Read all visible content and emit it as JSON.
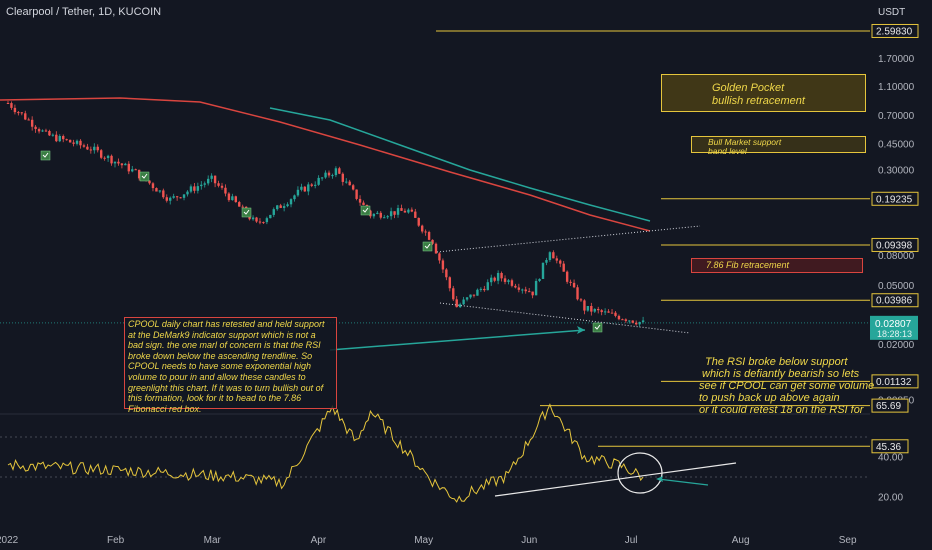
{
  "header": {
    "title": "Clearpool / Tether, 1D, KUCOIN"
  },
  "chart_data": {
    "type": "candlestick",
    "title": "Clearpool / Tether, 1D, KUCOIN",
    "price_scale": "log",
    "currency_label": "USDT",
    "price_ticks": [
      "1.70000",
      "1.10000",
      "0.70000",
      "0.45000",
      "0.30000",
      "0.08000",
      "0.05000",
      "0.02000",
      "0.00850"
    ],
    "level_labels": [
      {
        "name": "level-2.59830",
        "value": "2.59830"
      },
      {
        "name": "level-0.19235",
        "value": "0.19235"
      },
      {
        "name": "level-0.09398",
        "value": "0.09398"
      },
      {
        "name": "level-0.03986",
        "value": "0.03986"
      },
      {
        "name": "level-0.01132",
        "value": "0.01132"
      }
    ],
    "current_price": "0.02807",
    "countdown": "18:28:13",
    "x_ticks": [
      "2022",
      "Feb",
      "Mar",
      "Apr",
      "May",
      "Jun",
      "Jul",
      "Aug",
      "Sep"
    ],
    "rsi": {
      "ticks": [
        "20.00",
        "40.00"
      ],
      "level_labels": [
        "65.69",
        "45.36"
      ]
    },
    "price_path": [
      {
        "date": "2022-01-01",
        "close": 0.85
      },
      {
        "date": "2022-01-12",
        "close": 0.52
      },
      {
        "date": "2022-01-25",
        "close": 0.42
      },
      {
        "date": "2022-02-07",
        "close": 0.29
      },
      {
        "date": "2022-02-17",
        "close": 0.19
      },
      {
        "date": "2022-03-01",
        "close": 0.26
      },
      {
        "date": "2022-03-14",
        "close": 0.13
      },
      {
        "date": "2022-03-27",
        "close": 0.22
      },
      {
        "date": "2022-04-06",
        "close": 0.3
      },
      {
        "date": "2022-04-16",
        "close": 0.15
      },
      {
        "date": "2022-04-27",
        "close": 0.16
      },
      {
        "date": "2022-05-04",
        "close": 0.1
      },
      {
        "date": "2022-05-11",
        "close": 0.036
      },
      {
        "date": "2022-05-23",
        "close": 0.058
      },
      {
        "date": "2022-06-02",
        "close": 0.045
      },
      {
        "date": "2022-06-07",
        "close": 0.088
      },
      {
        "date": "2022-06-17",
        "close": 0.035
      },
      {
        "date": "2022-06-27",
        "close": 0.031
      },
      {
        "date": "2022-07-04",
        "close": 0.028
      }
    ],
    "rsi_path": [
      {
        "date": "2022-01-01",
        "value": 36
      },
      {
        "date": "2022-02-07",
        "value": 33
      },
      {
        "date": "2022-03-08",
        "value": 30
      },
      {
        "date": "2022-03-22",
        "value": 27
      },
      {
        "date": "2022-04-05",
        "value": 65
      },
      {
        "date": "2022-04-12",
        "value": 47
      },
      {
        "date": "2022-04-16",
        "value": 63
      },
      {
        "date": "2022-05-04",
        "value": 28
      },
      {
        "date": "2022-05-11",
        "value": 19
      },
      {
        "date": "2022-05-26",
        "value": 31
      },
      {
        "date": "2022-06-07",
        "value": 66
      },
      {
        "date": "2022-06-17",
        "value": 40
      },
      {
        "date": "2022-06-27",
        "value": 36
      },
      {
        "date": "2022-07-04",
        "value": 30
      }
    ]
  },
  "annotations": {
    "main_text": "CPOOL daily chart has retested and held support at the DeMark9 indicator support which is not a bad sign. the one marl of concern is that the RSI broke down below the ascending trendline. So CPOOL needs to have some exponential high volume to pour in and allow these candles to greenlight this chart. If it was to turn bullish out of this formation, look for it to head to the 7.86 Fibonacci red box.",
    "golden_pocket": [
      "Golden Pocket",
      "bullish retracement"
    ],
    "bull_market": [
      "Bull Market support",
      "band level"
    ],
    "fib_box": "7.86 Fib retracement",
    "rsi_note": [
      "The RSI broke below support",
      "which is defiantly bearish so lets",
      "see if CPOOL can get some volume",
      "to push back up above again",
      "or it could retest 18 on the RSI for"
    ]
  },
  "colors": {
    "background": "#131722",
    "candle_up": "#26a69a",
    "candle_down": "#ef5350",
    "ma_red": "#d9453f",
    "ma_teal": "#26a69a",
    "level_line": "#e5c53c",
    "rsi_line": "#e5c53c",
    "annotation_text": "#f0d84a",
    "box_border": "#e5c53c"
  }
}
